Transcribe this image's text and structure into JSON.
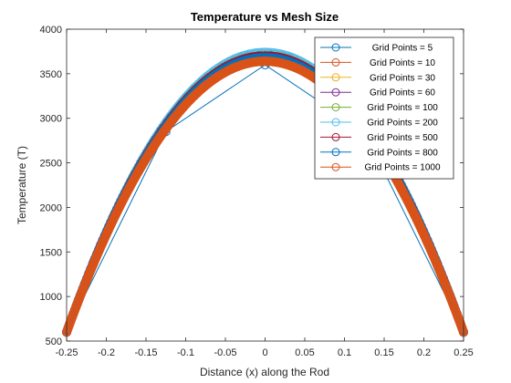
{
  "chart_data": {
    "type": "line",
    "title": "Temperature vs Mesh Size",
    "xlabel": "Distance (x) along the Rod",
    "ylabel": "Temperature (T)",
    "xlim": [
      -0.25,
      0.25
    ],
    "ylim": [
      500,
      4000
    ],
    "xticks": [
      -0.25,
      -0.2,
      -0.15,
      -0.1,
      -0.05,
      0,
      0.05,
      0.1,
      0.15,
      0.2,
      0.25
    ],
    "xtick_labels": [
      "-0.25",
      "-0.2",
      "-0.15",
      "-0.1",
      "-0.05",
      "0",
      "0.05",
      "0.1",
      "0.15",
      "0.2",
      "0.25"
    ],
    "yticks": [
      500,
      1000,
      1500,
      2000,
      2500,
      3000,
      3500,
      4000
    ],
    "ytick_labels": [
      "500",
      "1000",
      "1500",
      "2000",
      "2500",
      "3000",
      "3500",
      "4000"
    ],
    "grid": false,
    "legend_position": "top-right",
    "boundary_value": 600,
    "series": [
      {
        "name": "Grid Points = 5",
        "color": "#0072BD",
        "points": 5,
        "peak": 3600
      },
      {
        "name": "Grid Points = 10",
        "color": "#D95319",
        "points": 10,
        "peak": 3680
      },
      {
        "name": "Grid Points = 30",
        "color": "#EDB120",
        "points": 30,
        "peak": 3700
      },
      {
        "name": "Grid Points = 60",
        "color": "#7E2F8E",
        "points": 60,
        "peak": 3720
      },
      {
        "name": "Grid Points = 100",
        "color": "#77AC30",
        "points": 100,
        "peak": 3720
      },
      {
        "name": "Grid Points = 200",
        "color": "#4DBEEE",
        "points": 200,
        "peak": 3740
      },
      {
        "name": "Grid Points = 500",
        "color": "#A2142F",
        "points": 500,
        "peak": 3700
      },
      {
        "name": "Grid Points = 800",
        "color": "#0072BD",
        "points": 800,
        "peak": 3680
      },
      {
        "name": "Grid Points = 1000",
        "color": "#D95319",
        "points": 1000,
        "peak": 3640
      }
    ]
  }
}
